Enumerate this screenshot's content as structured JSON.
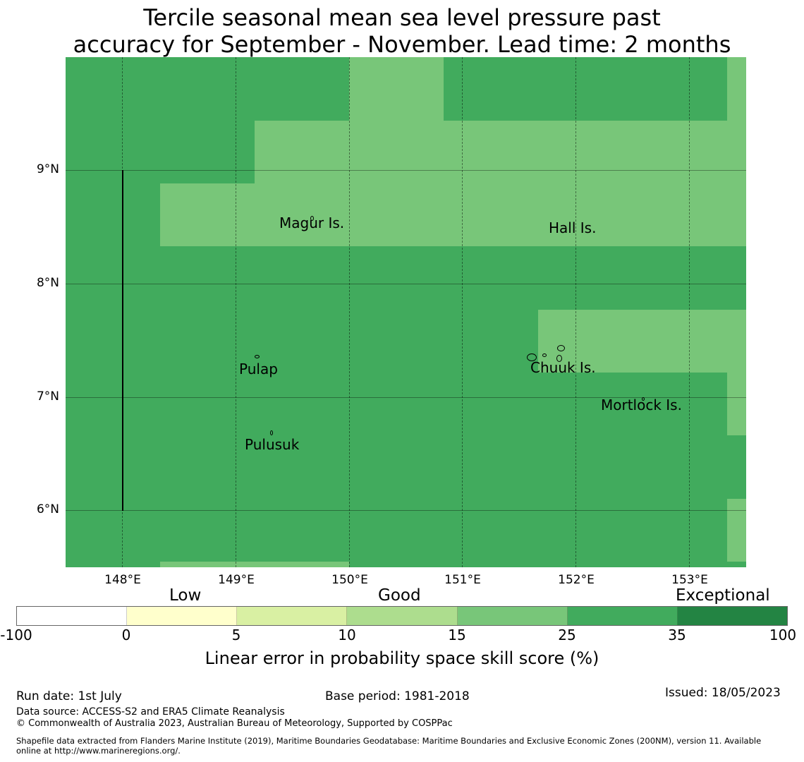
{
  "title_line1": "Tercile seasonal mean sea level pressure past",
  "title_line2": "accuracy for September - November. Lead time: 2 months",
  "map": {
    "y_ticks": [
      "9°N",
      "8°N",
      "7°N",
      "6°N"
    ],
    "x_ticks": [
      "148°E",
      "149°E",
      "150°E",
      "151°E",
      "152°E",
      "153°E"
    ],
    "places": [
      "Magur Is.",
      "Hall Is.",
      "Pulap",
      "Chuuk Is.",
      "Mortlock Is.",
      "Pulusuk"
    ],
    "colors": {
      "good_25_35": "#41ab5d",
      "good_15_25": "#78c679"
    }
  },
  "colorbar": {
    "categories": [
      "Low",
      "Good",
      "Exceptional"
    ],
    "ticks": [
      "-100",
      "0",
      "5",
      "10",
      "15",
      "25",
      "35",
      "100"
    ],
    "colors": [
      "#ffffff",
      "#ffffcc",
      "#d9f0a3",
      "#addd8e",
      "#78c679",
      "#41ab5d",
      "#238443"
    ],
    "label": "Linear error in probability space skill score (%)"
  },
  "footer": {
    "run_date": "Run date: 1st July",
    "base_period": "Base period: 1981-2018",
    "issued": "Issued: 18/05/2023",
    "data_source": "Data source: ACCESS-S2 and ERA5 Climate Reanalysis",
    "copyright": "© Commonwealth of Australia 2023, Australian Bureau of Meteorology, Supported by COSPPac",
    "shapefile_line1": "Shapefile data extracted from Flanders Marine Institute (2019), Maritime Boundaries Geodatabase: Maritime Boundaries and Exclusive Economic Zones (200NM), version 11. Available",
    "shapefile_line2": "online at http://www.marineregions.org/."
  }
}
